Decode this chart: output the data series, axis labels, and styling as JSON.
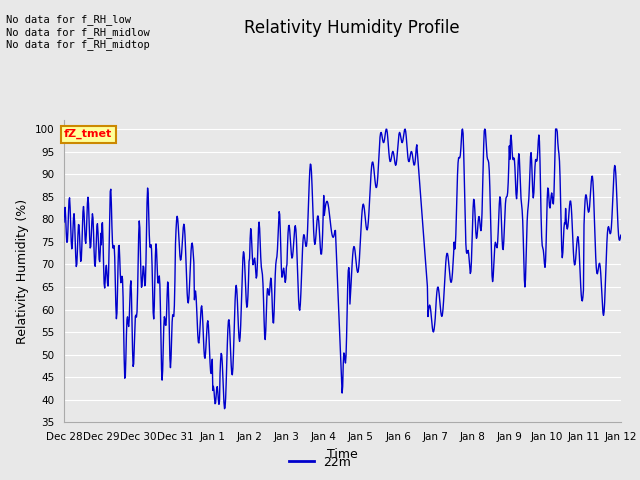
{
  "title": "Relativity Humidity Profile",
  "ylabel": "Relativity Humidity (%)",
  "xlabel": "Time",
  "ylim": [
    35,
    102
  ],
  "yticks": [
    35,
    40,
    45,
    50,
    55,
    60,
    65,
    70,
    75,
    80,
    85,
    90,
    95,
    100
  ],
  "line_color": "#0000cc",
  "line_label": "22m",
  "legend_notes": [
    "No data for f_RH_low",
    "No data for f_RH_midlow",
    "No data for f_RH_midtop"
  ],
  "legend_box_text": "fZ_tmet",
  "background_color": "#e8e8e8",
  "plot_bg_color": "#e8e8e8",
  "grid_color": "white",
  "xtick_labels": [
    "Dec 28",
    "Dec 29",
    "Dec 30",
    "Dec 31",
    "Jan 1",
    "Jan 2",
    "Jan 3",
    "Jan 4",
    "Jan 5",
    "Jan 6",
    "Jan 7",
    "Jan 8",
    "Jan 9",
    "Jan 10",
    "Jan 11",
    "Jan 12"
  ]
}
